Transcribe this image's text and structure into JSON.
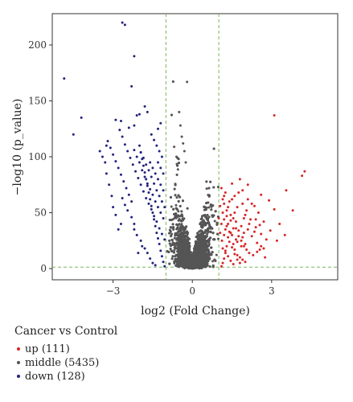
{
  "chart_data": {
    "type": "scatter",
    "xlabel": "log2 (Fold Change)",
    "ylabel": "−log10 (p_value)",
    "xlim": [
      -5.3,
      5.5
    ],
    "ylim": [
      -10,
      228
    ],
    "x_ticks": [
      -3,
      0,
      3
    ],
    "y_ticks": [
      0,
      50,
      100,
      150,
      200
    ],
    "x_tick_labels": [
      "−3",
      "0",
      "3"
    ],
    "y_tick_labels": [
      "0",
      "50",
      "100",
      "150",
      "200"
    ],
    "thresholds": {
      "fold_change_lines": [
        -1,
        1
      ],
      "p_value_line": 1.3,
      "line_color": "#7ab55c"
    },
    "legend": {
      "title": "Cancer vs Control",
      "placement": "below-left",
      "entries": [
        {
          "label": "up (111)",
          "color": "#d62728"
        },
        {
          "label": "middle (5435)",
          "color": "#555555"
        },
        {
          "label": "down (128)",
          "color": "#22237e"
        }
      ]
    },
    "series": [
      {
        "name": "up (111)",
        "color": "#d62728",
        "count": 111,
        "points": [
          [
            1.1,
            2
          ],
          [
            1.15,
            5
          ],
          [
            1.2,
            9
          ],
          [
            1.25,
            14
          ],
          [
            1.3,
            20
          ],
          [
            1.12,
            25
          ],
          [
            1.35,
            28
          ],
          [
            1.4,
            33
          ],
          [
            1.3,
            38
          ],
          [
            1.45,
            43
          ],
          [
            1.5,
            30
          ],
          [
            1.55,
            22
          ],
          [
            1.6,
            17
          ],
          [
            1.7,
            12
          ],
          [
            1.8,
            10
          ],
          [
            1.9,
            8
          ],
          [
            2.0,
            6
          ],
          [
            1.2,
            30
          ],
          [
            1.25,
            35
          ],
          [
            1.35,
            40
          ],
          [
            1.45,
            48
          ],
          [
            1.55,
            45
          ],
          [
            1.65,
            36
          ],
          [
            1.75,
            29
          ],
          [
            1.85,
            25
          ],
          [
            1.95,
            20
          ],
          [
            2.05,
            17
          ],
          [
            2.15,
            14
          ],
          [
            2.3,
            12
          ],
          [
            2.45,
            15
          ],
          [
            2.6,
            20
          ],
          [
            2.75,
            10
          ],
          [
            1.6,
            50
          ],
          [
            1.7,
            55
          ],
          [
            1.9,
            58
          ],
          [
            2.0,
            48
          ],
          [
            2.2,
            44
          ],
          [
            2.4,
            37
          ],
          [
            2.6,
            31
          ],
          [
            2.8,
            26
          ],
          [
            1.4,
            60
          ],
          [
            1.6,
            65
          ],
          [
            1.9,
            70
          ],
          [
            2.1,
            62
          ],
          [
            2.35,
            56
          ],
          [
            2.5,
            50
          ],
          [
            2.7,
            42
          ],
          [
            1.8,
            80
          ],
          [
            2.1,
            75
          ],
          [
            2.6,
            66
          ],
          [
            2.9,
            61
          ],
          [
            3.1,
            53
          ],
          [
            3.3,
            40
          ],
          [
            3.5,
            30
          ],
          [
            3.8,
            52
          ],
          [
            4.15,
            83
          ],
          [
            4.25,
            87
          ],
          [
            3.1,
            137
          ],
          [
            3.55,
            70
          ],
          [
            1.2,
            58
          ],
          [
            1.3,
            52
          ],
          [
            1.5,
            62
          ],
          [
            1.2,
            65
          ],
          [
            1.75,
            68
          ],
          [
            1.1,
            72
          ],
          [
            1.5,
            76
          ],
          [
            2.25,
            29
          ],
          [
            2.45,
            23
          ],
          [
            2.55,
            17
          ],
          [
            2.15,
            40
          ],
          [
            2.35,
            33
          ],
          [
            1.65,
            42
          ],
          [
            1.85,
            38
          ],
          [
            1.75,
            34
          ],
          [
            1.95,
            32
          ],
          [
            1.25,
            16
          ],
          [
            1.35,
            11
          ],
          [
            1.45,
            7
          ],
          [
            1.55,
            4
          ],
          [
            1.15,
            18
          ],
          [
            1.65,
            26
          ],
          [
            1.05,
            32
          ],
          [
            1.1,
            40
          ],
          [
            1.2,
            44
          ],
          [
            1.3,
            47
          ],
          [
            1.4,
            24
          ],
          [
            1.5,
            19
          ],
          [
            1.6,
            13
          ],
          [
            1.7,
            8
          ],
          [
            1.8,
            5
          ],
          [
            2.95,
            34
          ],
          [
            3.2,
            25
          ],
          [
            2.7,
            18
          ],
          [
            2.55,
            39
          ],
          [
            2.05,
            52
          ],
          [
            2.25,
            58
          ],
          [
            1.95,
            45
          ],
          [
            1.15,
            50
          ],
          [
            1.05,
            56
          ],
          [
            1.7,
            24
          ],
          [
            1.9,
            28
          ],
          [
            2.1,
            35
          ],
          [
            1.0,
            45
          ],
          [
            1.35,
            55
          ],
          [
            1.15,
            62
          ],
          [
            1.25,
            68
          ],
          [
            2.4,
            44
          ],
          [
            1.55,
            36
          ],
          [
            1.45,
            32
          ],
          [
            1.85,
            20
          ],
          [
            2.0,
            22
          ]
        ]
      },
      {
        "name": "middle (5435)",
        "color": "#555555",
        "count": 5435,
        "points": []
      },
      {
        "name": "down (128)",
        "color": "#22237e",
        "count": 128,
        "points": [
          [
            -1.05,
            2
          ],
          [
            -1.1,
            6
          ],
          [
            -1.15,
            11
          ],
          [
            -1.2,
            16
          ],
          [
            -1.25,
            22
          ],
          [
            -1.3,
            27
          ],
          [
            -1.35,
            32
          ],
          [
            -1.4,
            38
          ],
          [
            -1.45,
            44
          ],
          [
            -1.5,
            50
          ],
          [
            -1.55,
            56
          ],
          [
            -1.6,
            62
          ],
          [
            -1.65,
            68
          ],
          [
            -1.7,
            74
          ],
          [
            -1.75,
            80
          ],
          [
            -1.8,
            86
          ],
          [
            -1.85,
            92
          ],
          [
            -1.9,
            98
          ],
          [
            -1.95,
            104
          ],
          [
            -2.0,
            110
          ],
          [
            -1.05,
            26
          ],
          [
            -1.15,
            31
          ],
          [
            -1.25,
            36
          ],
          [
            -1.35,
            42
          ],
          [
            -1.45,
            47
          ],
          [
            -1.55,
            53
          ],
          [
            -1.65,
            58
          ],
          [
            -1.75,
            63
          ],
          [
            -1.85,
            69
          ],
          [
            -1.95,
            75
          ],
          [
            -2.05,
            81
          ],
          [
            -2.15,
            87
          ],
          [
            -2.25,
            93
          ],
          [
            -2.35,
            99
          ],
          [
            -2.45,
            105
          ],
          [
            -2.55,
            111
          ],
          [
            -2.65,
            118
          ],
          [
            -2.75,
            124
          ],
          [
            -1.1,
            45
          ],
          [
            -1.2,
            50
          ],
          [
            -1.3,
            55
          ],
          [
            -1.4,
            60
          ],
          [
            -1.5,
            66
          ],
          [
            -1.6,
            71
          ],
          [
            -1.7,
            76
          ],
          [
            -1.8,
            82
          ],
          [
            -1.9,
            88
          ],
          [
            -2.0,
            95
          ],
          [
            -2.1,
            100
          ],
          [
            -2.2,
            106
          ],
          [
            -1.05,
            55
          ],
          [
            -1.15,
            60
          ],
          [
            -1.25,
            65
          ],
          [
            -1.35,
            70
          ],
          [
            -1.45,
            76
          ],
          [
            -1.55,
            82
          ],
          [
            -1.65,
            88
          ],
          [
            -1.75,
            93
          ],
          [
            -1.85,
            99
          ],
          [
            -1.95,
            104
          ],
          [
            -2.3,
            60
          ],
          [
            -2.4,
            66
          ],
          [
            -2.5,
            72
          ],
          [
            -2.6,
            78
          ],
          [
            -2.7,
            84
          ],
          [
            -2.8,
            90
          ],
          [
            -2.9,
            96
          ],
          [
            -3.0,
            102
          ],
          [
            -3.1,
            108
          ],
          [
            -3.2,
            114
          ],
          [
            -2.2,
            40
          ],
          [
            -2.3,
            46
          ],
          [
            -2.45,
            52
          ],
          [
            -2.55,
            57
          ],
          [
            -2.65,
            63
          ],
          [
            -2.1,
            30
          ],
          [
            -2.2,
            35
          ],
          [
            -1.9,
            20
          ],
          [
            -1.95,
            25
          ],
          [
            -2.05,
            14
          ],
          [
            -1.6,
            9
          ],
          [
            -1.7,
            14
          ],
          [
            -1.8,
            18
          ],
          [
            -1.5,
            5
          ],
          [
            -1.4,
            3
          ],
          [
            -1.1,
            70
          ],
          [
            -1.2,
            75
          ],
          [
            -1.3,
            80
          ],
          [
            -1.4,
            85
          ],
          [
            -1.5,
            90
          ],
          [
            -1.6,
            95
          ],
          [
            -1.1,
            85
          ],
          [
            -1.2,
            90
          ],
          [
            -1.3,
            95
          ],
          [
            -1.15,
            100
          ],
          [
            -1.25,
            105
          ],
          [
            -1.35,
            110
          ],
          [
            -1.45,
            115
          ],
          [
            -1.55,
            120
          ],
          [
            -2.7,
            40
          ],
          [
            -2.8,
            35
          ],
          [
            -2.9,
            48
          ],
          [
            -3.0,
            55
          ],
          [
            -3.05,
            65
          ],
          [
            -3.15,
            75
          ],
          [
            -3.25,
            85
          ],
          [
            -3.3,
            95
          ],
          [
            -3.4,
            100
          ],
          [
            -3.5,
            105
          ],
          [
            -2.4,
            126
          ],
          [
            -2.7,
            132
          ],
          [
            -2.9,
            133
          ],
          [
            -2.0,
            138
          ],
          [
            -2.1,
            137
          ],
          [
            -2.2,
            128
          ],
          [
            -3.25,
            110
          ],
          [
            -2.3,
            163
          ],
          [
            -2.2,
            190
          ],
          [
            -2.55,
            218
          ],
          [
            -2.65,
            220
          ],
          [
            -4.5,
            120
          ],
          [
            -4.2,
            135
          ],
          [
            -4.85,
            170
          ],
          [
            -1.7,
            140
          ],
          [
            -1.8,
            145
          ],
          [
            -1.3,
            125
          ],
          [
            -1.2,
            130
          ]
        ]
      }
    ]
  },
  "legend_title": "Cancer vs Control",
  "legend_items": [
    "up (111)",
    "middle (5435)",
    "down (128)"
  ]
}
